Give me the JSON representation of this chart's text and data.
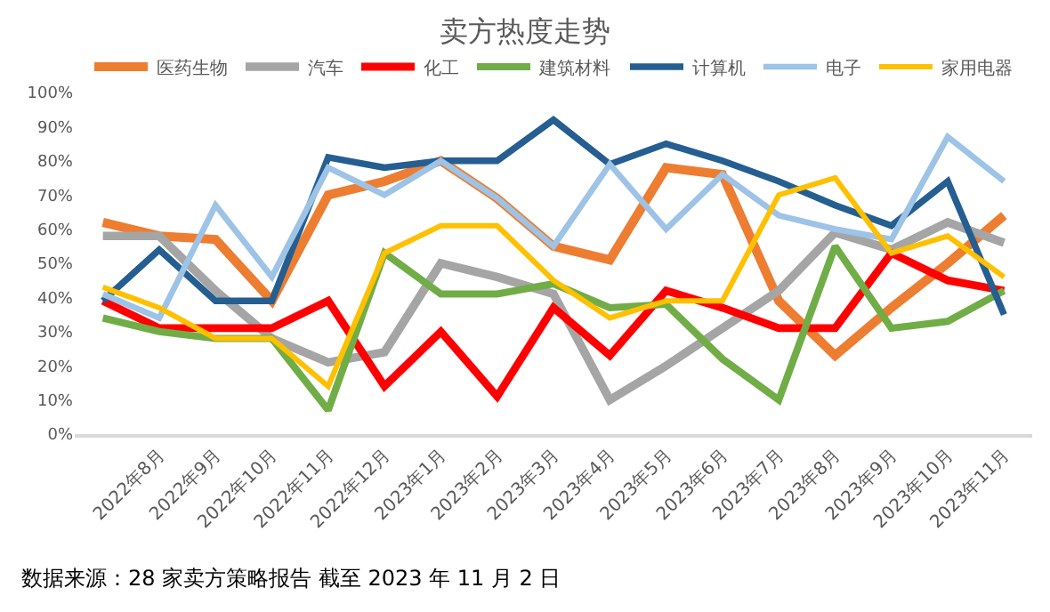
{
  "chart_data": {
    "type": "line",
    "title": "卖方热度走势",
    "categories": [
      null,
      "2022年8月",
      "2022年9月",
      "2022年10月",
      "2022年11月",
      "2022年12月",
      "2023年1月",
      "2023年2月",
      "2023年3月",
      "2023年4月",
      "2023年5月",
      "2023年6月",
      "2023年7月",
      "2023年8月",
      "2023年9月",
      "2023年10月",
      "2023年11月"
    ],
    "series": [
      {
        "name": "医药生物",
        "color": "#ed7d31",
        "values": [
          62,
          58,
          57,
          39,
          70,
          74,
          80,
          69,
          55,
          51,
          78,
          76,
          39,
          23,
          37,
          50,
          64
        ]
      },
      {
        "name": "汽车",
        "color": "#a5a5a5",
        "values": [
          58,
          58,
          42,
          28,
          21,
          24,
          50,
          46,
          41,
          10,
          20,
          31,
          42,
          59,
          54,
          62,
          56
        ]
      },
      {
        "name": "化工",
        "color": "#ff0000",
        "values": [
          39,
          31,
          31,
          31,
          39,
          14,
          30,
          11,
          37,
          23,
          42,
          37,
          31,
          31,
          53,
          45,
          42
        ]
      },
      {
        "name": "建筑材料",
        "color": "#70ad47",
        "values": [
          34,
          30,
          28,
          28,
          7,
          53,
          41,
          41,
          44,
          37,
          38,
          22,
          10,
          55,
          31,
          33,
          42
        ]
      },
      {
        "name": "计算机",
        "color": "#255e91",
        "values": [
          39,
          54,
          39,
          39,
          81,
          78,
          80,
          80,
          92,
          79,
          85,
          80,
          74,
          67,
          61,
          74,
          35
        ]
      },
      {
        "name": "电子",
        "color": "#9dc3e6",
        "values": [
          41,
          34,
          67,
          46,
          78,
          70,
          80,
          69,
          55,
          79,
          60,
          76,
          64,
          60,
          57,
          87,
          74
        ]
      },
      {
        "name": "家用电器",
        "color": "#ffc000",
        "values": [
          43,
          37,
          28,
          28,
          14,
          53,
          61,
          61,
          45,
          34,
          39,
          39,
          70,
          75,
          53,
          58,
          46
        ]
      }
    ],
    "ylim": [
      0,
      100
    ],
    "yticks": [
      {
        "value": 0,
        "label": "0%"
      },
      {
        "value": 10,
        "label": "10%"
      },
      {
        "value": 20,
        "label": "20%"
      },
      {
        "value": 30,
        "label": "30%"
      },
      {
        "value": 40,
        "label": "40%"
      },
      {
        "value": 50,
        "label": "50%"
      },
      {
        "value": 60,
        "label": "60%"
      },
      {
        "value": 70,
        "label": "70%"
      },
      {
        "value": 80,
        "label": "80%"
      },
      {
        "value": 90,
        "label": "90%"
      },
      {
        "value": 100,
        "label": "100%"
      }
    ],
    "grid": false,
    "legend": "top",
    "marker": "none",
    "line_style": "solid",
    "annotations": [
      "数据来源：28 家卖方策略报告 截至 2023 年 11 月 2 日"
    ]
  }
}
